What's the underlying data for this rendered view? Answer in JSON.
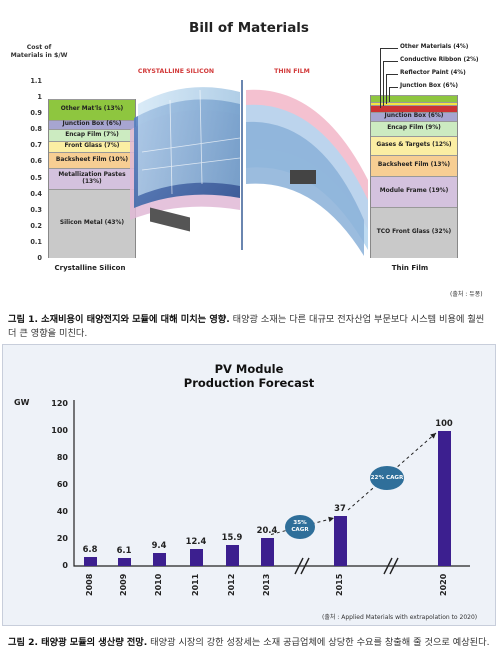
{
  "figure1": {
    "title": "Bill of Materials",
    "y_axis_label": "Cost of Materials in $/W",
    "y_ticks": [
      "1.1",
      "1",
      "0.9",
      "0.8",
      "0.7",
      "0.6",
      "0.5",
      "0.4",
      "0.3",
      "0.2",
      "0.1",
      "0"
    ],
    "center_labels": {
      "left": "CRYSTALLINE SILICON",
      "right": "THIN FILM"
    },
    "crystalline_silicon": {
      "caption": "Crystalline Silicon",
      "segments": [
        {
          "label": "Silicon Metal (43%)",
          "value": 0.43,
          "color": "#c9c9c9"
        },
        {
          "label": "Metallization Pastes (13%)",
          "value": 0.13,
          "color": "#d4c2de"
        },
        {
          "label": "Backsheet Film (10%)",
          "value": 0.1,
          "color": "#f7ce93"
        },
        {
          "label": "Front Glass (7%)",
          "value": 0.07,
          "color": "#fbeea3"
        },
        {
          "label": "Encap Film (7%)",
          "value": 0.07,
          "color": "#ccebc1"
        },
        {
          "label": "Junction Box (6%)",
          "value": 0.06,
          "color": "#a7a5d1"
        },
        {
          "label": "Other Mat'ls (13%)",
          "value": 0.13,
          "color": "#8ec63f"
        }
      ]
    },
    "thin_film": {
      "caption": "Thin Film",
      "segments": [
        {
          "label": "TCO Front Glass (32%)",
          "value": 0.32,
          "color": "#c9c9c9"
        },
        {
          "label": "Module Frame (19%)",
          "value": 0.19,
          "color": "#d4c2de"
        },
        {
          "label": "Backsheet Film (13%)",
          "value": 0.13,
          "color": "#f7ce93"
        },
        {
          "label": "Gases & Targets (12%)",
          "value": 0.12,
          "color": "#fbeea3"
        },
        {
          "label": "Encap Film (9%)",
          "value": 0.09,
          "color": "#ccebc1"
        },
        {
          "label": "Junction Box (6%)",
          "value": 0.06,
          "color": "#a7a5d1"
        },
        {
          "label": "Reflector Paint (4%)",
          "value": 0.04,
          "color": "#cc3333"
        },
        {
          "label": "Conductive Ribbon (2%)",
          "value": 0.02,
          "color": "#f2e542"
        },
        {
          "label": "Other Materials (4%)",
          "value": 0.04,
          "color": "#8ec63f"
        }
      ],
      "callouts": [
        "Other Materials (4%)",
        "Conductive Ribbon (2%)",
        "Reflector Paint (4%)",
        "Junction Box (6%)"
      ]
    },
    "source": "(출처 : 듀퐁)",
    "caption_bold": "그림 1. 소재비용이 태양전지와 모듈에 대해 미치는 영향.",
    "caption_rest": "태양광 소재는 다른 대규모 전자산업 부문보다 시스템 비용에 훨씬 더 큰 영향을 미친다."
  },
  "figure2": {
    "title_line1": "PV Module",
    "title_line2": "Production Forecast",
    "y_unit": "GW",
    "y_ticks": [
      "120",
      "100",
      "80",
      "60",
      "40",
      "20",
      "0"
    ],
    "cagr_labels": [
      {
        "text": "35% CAGR"
      },
      {
        "text": "22% CAGR"
      }
    ],
    "source": "(출처 : Applied Materials with extrapolation to 2020)",
    "caption_bold": "그림 2. 태양광 모듈의 생산량 전망.",
    "caption_rest": "태양광 시장의 강한 성장세는 소재 공급업체에 상당한 수요를 창출해 줄 것으로 예상된다."
  },
  "chart_data": [
    {
      "type": "bar",
      "title": "Bill of Materials",
      "ylabel": "Cost of Materials in $/W",
      "ylim": [
        0,
        1.1
      ],
      "categories": [
        "Crystalline Silicon",
        "Thin Film"
      ],
      "stacked": true,
      "series_crystalline_silicon": [
        {
          "name": "Silicon Metal (43%)",
          "value": 0.43
        },
        {
          "name": "Metallization Pastes (13%)",
          "value": 0.13
        },
        {
          "name": "Backsheet Film (10%)",
          "value": 0.1
        },
        {
          "name": "Front Glass (7%)",
          "value": 0.07
        },
        {
          "name": "Encap Film (7%)",
          "value": 0.07
        },
        {
          "name": "Junction Box (6%)",
          "value": 0.06
        },
        {
          "name": "Other Mat'ls (13%)",
          "value": 0.13
        }
      ],
      "series_thin_film": [
        {
          "name": "TCO Front Glass (32%)",
          "value": 0.32
        },
        {
          "name": "Module Frame (19%)",
          "value": 0.19
        },
        {
          "name": "Backsheet Film (13%)",
          "value": 0.13
        },
        {
          "name": "Gases & Targets (12%)",
          "value": 0.12
        },
        {
          "name": "Encap Film (9%)",
          "value": 0.09
        },
        {
          "name": "Junction Box (6%)",
          "value": 0.06
        },
        {
          "name": "Reflector Paint (4%)",
          "value": 0.04
        },
        {
          "name": "Conductive Ribbon (2%)",
          "value": 0.02
        },
        {
          "name": "Other Materials (4%)",
          "value": 0.04
        }
      ]
    },
    {
      "type": "bar",
      "title": "PV Module Production Forecast",
      "ylabel": "GW",
      "ylim": [
        0,
        120
      ],
      "categories": [
        "2008",
        "2009",
        "2010",
        "2011",
        "2012",
        "2013",
        "2015",
        "2020"
      ],
      "values": [
        6.8,
        6.1,
        9.4,
        12.4,
        15.9,
        20.4,
        37,
        100
      ],
      "value_labels": [
        "6.8",
        "6.1",
        "9.4",
        "12.4",
        "15.9",
        "20.4",
        "37",
        "100"
      ],
      "color": "#3c1f8f"
    }
  ]
}
